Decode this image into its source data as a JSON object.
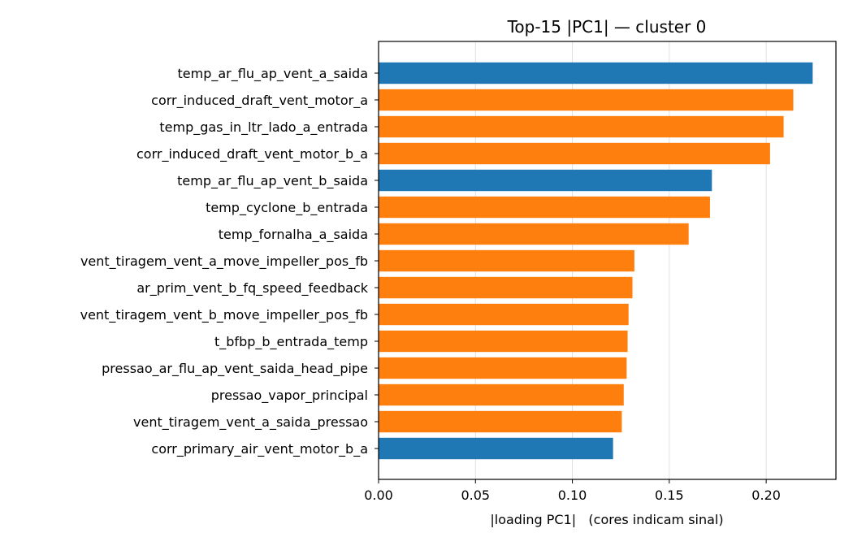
{
  "chart_data": {
    "type": "bar",
    "orientation": "horizontal",
    "title": "Top-15 |PC1| — cluster 0",
    "xlabel": "|loading PC1|   (cores indicam sinal)",
    "ylabel": "",
    "xlim": [
      0,
      0.236
    ],
    "xticks": [
      0.0,
      0.05,
      0.1,
      0.15,
      0.2
    ],
    "xtick_labels": [
      "0.00",
      "0.05",
      "0.10",
      "0.15",
      "0.20"
    ],
    "grid": "vertical",
    "colors": {
      "blue": "#1f77b4",
      "orange": "#ff7f0e"
    },
    "bars": [
      {
        "label": "temp_ar_flu_ap_vent_a_saida",
        "value": 0.224,
        "color": "#1f77b4"
      },
      {
        "label": "corr_induced_draft_vent_motor_a",
        "value": 0.214,
        "color": "#ff7f0e"
      },
      {
        "label": "temp_gas_in_ltr_lado_a_entrada",
        "value": 0.209,
        "color": "#ff7f0e"
      },
      {
        "label": "corr_induced_draft_vent_motor_b_a",
        "value": 0.202,
        "color": "#ff7f0e"
      },
      {
        "label": "temp_ar_flu_ap_vent_b_saida",
        "value": 0.172,
        "color": "#1f77b4"
      },
      {
        "label": "temp_cyclone_b_entrada",
        "value": 0.171,
        "color": "#ff7f0e"
      },
      {
        "label": "temp_fornalha_a_saida",
        "value": 0.16,
        "color": "#ff7f0e"
      },
      {
        "label": "vent_tiragem_vent_a_move_impeller_pos_fb",
        "value": 0.132,
        "color": "#ff7f0e"
      },
      {
        "label": "ar_prim_vent_b_fq_speed_feedback",
        "value": 0.131,
        "color": "#ff7f0e"
      },
      {
        "label": "vent_tiragem_vent_b_move_impeller_pos_fb",
        "value": 0.129,
        "color": "#ff7f0e"
      },
      {
        "label": "t_bfbp_b_entrada_temp",
        "value": 0.1285,
        "color": "#ff7f0e"
      },
      {
        "label": "pressao_ar_flu_ap_vent_saida_head_pipe",
        "value": 0.128,
        "color": "#ff7f0e"
      },
      {
        "label": "pressao_vapor_principal",
        "value": 0.1265,
        "color": "#ff7f0e"
      },
      {
        "label": "vent_tiragem_vent_a_saida_pressao",
        "value": 0.1255,
        "color": "#ff7f0e"
      },
      {
        "label": "corr_primary_air_vent_motor_b_a",
        "value": 0.121,
        "color": "#1f77b4"
      }
    ]
  }
}
